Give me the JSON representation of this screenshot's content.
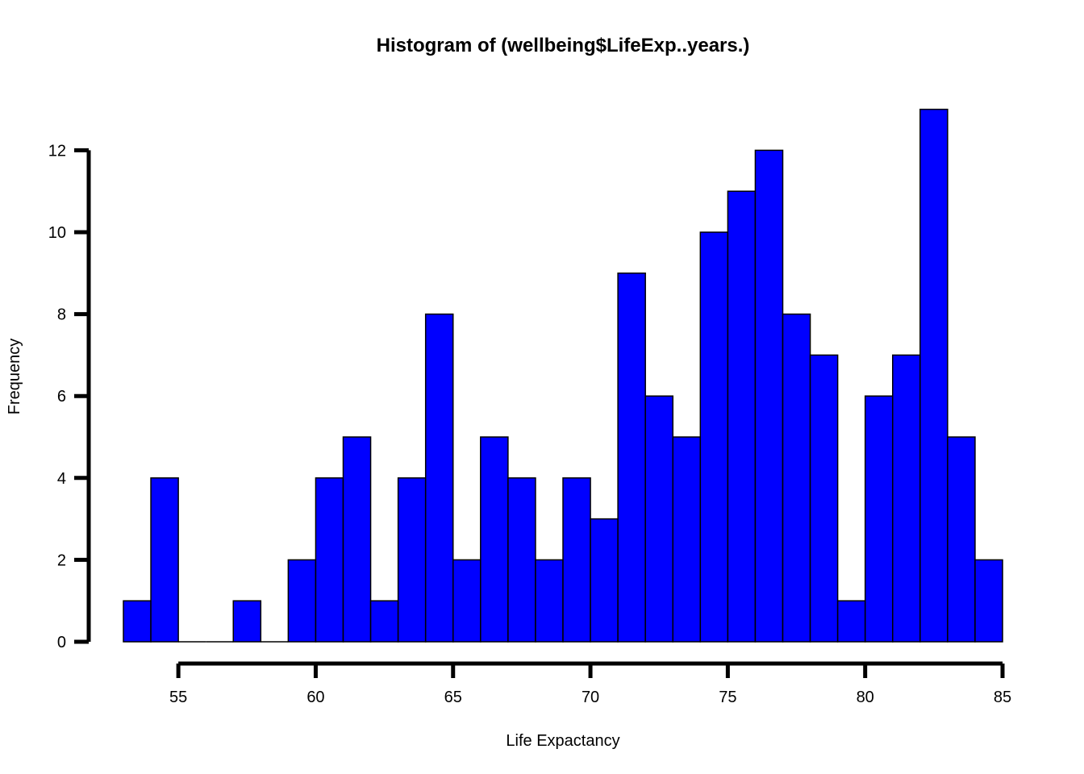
{
  "chart_data": {
    "type": "bar",
    "title": "Histogram of (wellbeing$LifeExp..years.)",
    "xlabel": "Life Expactancy",
    "ylabel": "Frequency",
    "bin_width": 1,
    "bin_starts": [
      53,
      54,
      55,
      56,
      57,
      58,
      59,
      60,
      61,
      62,
      63,
      64,
      65,
      66,
      67,
      68,
      69,
      70,
      71,
      72,
      73,
      74,
      75,
      76,
      77,
      78,
      79,
      80,
      81,
      82,
      83,
      84
    ],
    "values": [
      1,
      4,
      0,
      0,
      1,
      0,
      2,
      4,
      5,
      1,
      4,
      8,
      2,
      5,
      4,
      2,
      4,
      3,
      9,
      6,
      5,
      10,
      11,
      12,
      8,
      7,
      1,
      6,
      7,
      13,
      5,
      2
    ],
    "xlim": [
      53,
      85
    ],
    "ylim": [
      0,
      13
    ],
    "x_ticks": [
      55,
      60,
      65,
      70,
      75,
      80,
      85
    ],
    "y_ticks": [
      0,
      2,
      4,
      6,
      8,
      10,
      12
    ],
    "grid": false,
    "legend": "none",
    "bar_color": "#0000ff",
    "bar_border_color": "#000000"
  }
}
